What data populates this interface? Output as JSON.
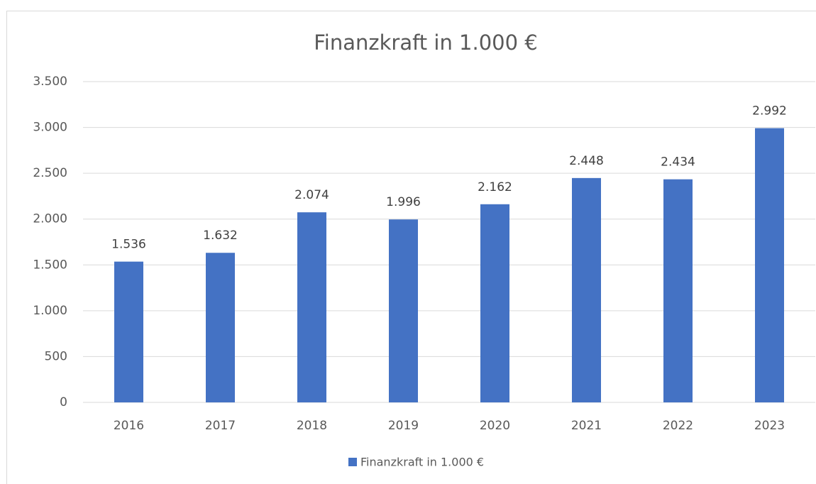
{
  "chart_data": {
    "type": "bar",
    "title": "Finanzkraft in 1.000 €",
    "categories": [
      "2016",
      "2017",
      "2018",
      "2019",
      "2020",
      "2021",
      "2022",
      "2023"
    ],
    "series": [
      {
        "name": "Finanzkraft in 1.000 €",
        "color": "#4472c4",
        "values": [
          1536,
          1632,
          2074,
          1996,
          2162,
          2448,
          2434,
          2992
        ],
        "value_labels": [
          "1.536",
          "1.632",
          "2.074",
          "1.996",
          "2.162",
          "2.448",
          "2.434",
          "2.992"
        ]
      }
    ],
    "ylim": [
      0,
      3500
    ],
    "yticks": [
      0,
      500,
      {
        "value": 1000,
        "label": "1.000"
      },
      {
        "value": 1500,
        "label": "1.500"
      },
      {
        "value": 2000,
        "label": "2.000"
      },
      {
        "value": 2500,
        "label": "2.500"
      },
      {
        "value": 3000,
        "label": "3.000"
      },
      {
        "value": 3500,
        "label": "3.500"
      }
    ],
    "grid": true,
    "legend": "bottom"
  }
}
